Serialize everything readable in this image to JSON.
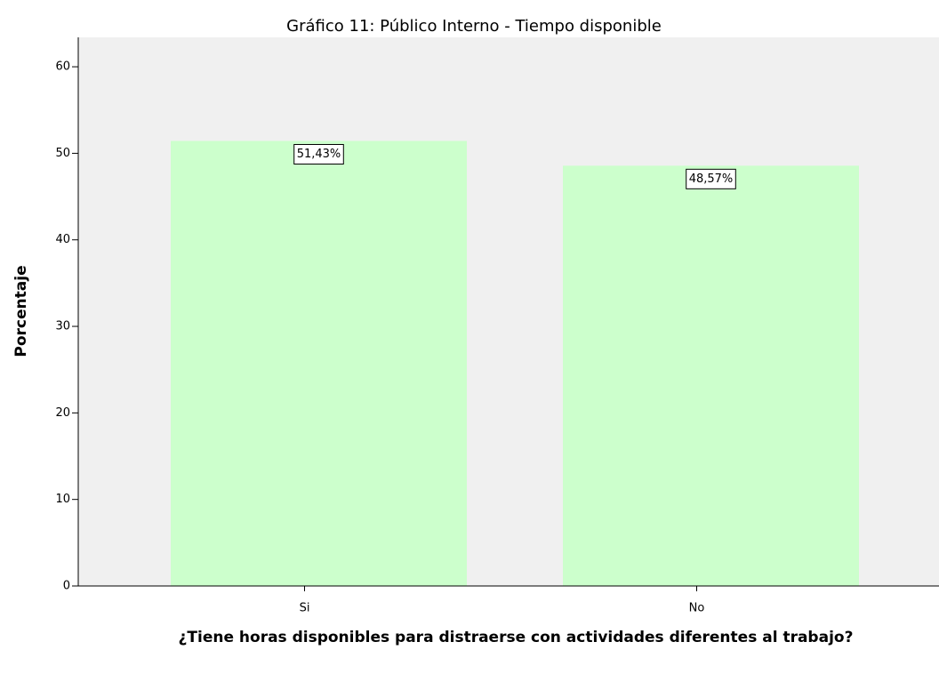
{
  "chart_data": {
    "type": "bar",
    "title": "Gráfico 11: Público Interno - Tiempo disponible",
    "x_label": "¿Tiene horas disponibles para distraerse con actividades diferentes al trabajo?",
    "y_label": "Porcentaje",
    "categories": [
      "Si",
      "No"
    ],
    "values": [
      51.43,
      48.57
    ],
    "value_labels": [
      "51,43%",
      "48,57%"
    ],
    "color": "#ccffcc",
    "ylim": [
      0,
      63.4
    ],
    "yticks": [
      0,
      10,
      20,
      30,
      40,
      50,
      60
    ],
    "grid": false
  }
}
